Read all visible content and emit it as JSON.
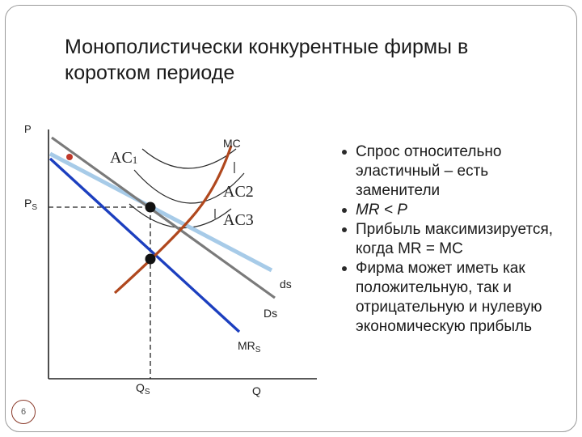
{
  "slide": {
    "title": "Монополистически конкурентные фирмы в коротком периоде",
    "page_number": "6"
  },
  "diagram": {
    "labels": {
      "p": "P",
      "ps": "P",
      "ps_sub": "S",
      "mc": "MC",
      "ac1": "AC",
      "ac1_sub": "1",
      "ac2": "AC2",
      "ac3": "AC3",
      "ds_small": "ds",
      "ds_big": "Ds",
      "mrs": "MR",
      "mrs_sub": "S",
      "qs": "Q",
      "qs_sub": "S",
      "q": "Q"
    },
    "colors": {
      "mc": "#b0481e",
      "ds_small": "#a7cbe8",
      "ds_big": "#7a7a7a",
      "mrs": "#1c3fbf",
      "ac": "#2a2a2a",
      "red_dot": "#c0392b"
    }
  },
  "bullets": [
    {
      "text": "Спрос относительно эластичный – есть заменители"
    },
    {
      "text": "MR < P"
    },
    {
      "text": "Прибыль максимизируется, когда MR = MC"
    },
    {
      "text": "Фирма может иметь как положительную, так и отрицательную и нулевую экономическую прибыль"
    }
  ]
}
